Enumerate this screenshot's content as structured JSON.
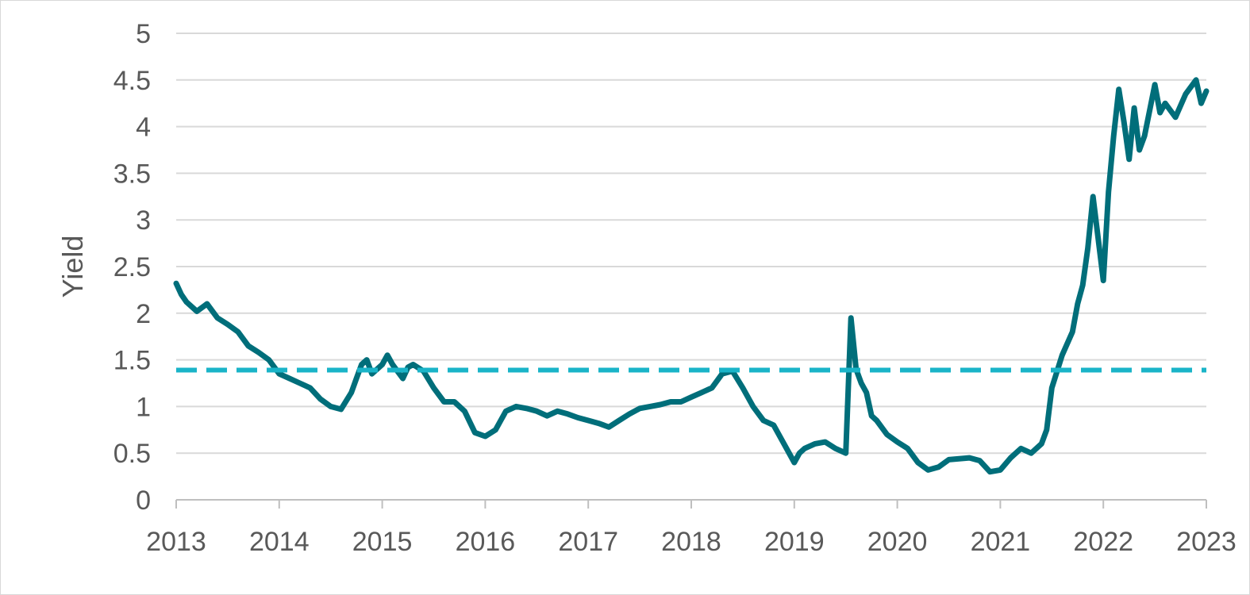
{
  "chart_data": {
    "type": "line",
    "title": "",
    "xlabel": "",
    "ylabel": "Yield",
    "xlim": [
      2013,
      2023
    ],
    "ylim": [
      0,
      5
    ],
    "x_ticks": [
      "2013",
      "2014",
      "2015",
      "2016",
      "2017",
      "2018",
      "2019",
      "2020",
      "2021",
      "2022",
      "2023"
    ],
    "y_ticks": [
      "0",
      "0.5",
      "1",
      "1.5",
      "2",
      "2.5",
      "3",
      "3.5",
      "4",
      "4.5",
      "5"
    ],
    "grid": "horizontal",
    "legend": "none",
    "series": [
      {
        "color": "#006E7A",
        "style": "solid",
        "x": [
          2013.0,
          2013.05,
          2013.1,
          2013.2,
          2013.3,
          2013.4,
          2013.5,
          2013.6,
          2013.7,
          2013.8,
          2013.9,
          2014.0,
          2014.1,
          2014.2,
          2014.3,
          2014.4,
          2014.5,
          2014.6,
          2014.7,
          2014.75,
          2014.8,
          2014.85,
          2014.9,
          2015.0,
          2015.05,
          2015.1,
          2015.2,
          2015.25,
          2015.3,
          2015.4,
          2015.5,
          2015.6,
          2015.7,
          2015.8,
          2015.9,
          2016.0,
          2016.1,
          2016.2,
          2016.3,
          2016.4,
          2016.5,
          2016.6,
          2016.7,
          2016.8,
          2016.9,
          2017.0,
          2017.1,
          2017.2,
          2017.3,
          2017.4,
          2017.5,
          2017.6,
          2017.7,
          2017.8,
          2017.9,
          2018.0,
          2018.1,
          2018.2,
          2018.3,
          2018.4,
          2018.5,
          2018.6,
          2018.7,
          2018.8,
          2018.9,
          2019.0,
          2019.05,
          2019.1,
          2019.2,
          2019.3,
          2019.4,
          2019.5,
          2019.55,
          2019.6,
          2019.65,
          2019.7,
          2019.75,
          2019.8,
          2019.9,
          2020.0,
          2020.1,
          2020.2,
          2020.3,
          2020.4,
          2020.5,
          2020.6,
          2020.7,
          2020.8,
          2020.9,
          2021.0,
          2021.1,
          2021.2,
          2021.3,
          2021.4,
          2021.45,
          2021.5,
          2021.6,
          2021.7,
          2021.75,
          2021.8,
          2021.85,
          2021.9,
          2021.95,
          2022.0,
          2022.05,
          2022.1,
          2022.15,
          2022.2,
          2022.25,
          2022.3,
          2022.35,
          2022.4,
          2022.5,
          2022.55,
          2022.6,
          2022.7,
          2022.8,
          2022.9,
          2022.95,
          2023.0
        ],
        "y": [
          2.32,
          2.2,
          2.12,
          2.02,
          2.1,
          1.95,
          1.88,
          1.8,
          1.65,
          1.58,
          1.5,
          1.35,
          1.3,
          1.25,
          1.2,
          1.08,
          1.0,
          0.97,
          1.15,
          1.3,
          1.45,
          1.5,
          1.35,
          1.45,
          1.55,
          1.45,
          1.3,
          1.42,
          1.45,
          1.38,
          1.2,
          1.05,
          1.05,
          0.95,
          0.72,
          0.68,
          0.75,
          0.95,
          1.0,
          0.98,
          0.95,
          0.9,
          0.95,
          0.92,
          0.88,
          0.85,
          0.82,
          0.78,
          0.85,
          0.92,
          0.98,
          1.0,
          1.02,
          1.05,
          1.05,
          1.1,
          1.15,
          1.2,
          1.35,
          1.38,
          1.2,
          1.0,
          0.85,
          0.8,
          0.6,
          0.4,
          0.5,
          0.55,
          0.6,
          0.62,
          0.55,
          0.5,
          1.95,
          1.4,
          1.25,
          1.15,
          0.9,
          0.85,
          0.7,
          0.62,
          0.55,
          0.4,
          0.32,
          0.35,
          0.43,
          0.44,
          0.45,
          0.42,
          0.3,
          0.32,
          0.45,
          0.55,
          0.5,
          0.6,
          0.75,
          1.2,
          1.55,
          1.8,
          2.1,
          2.3,
          2.7,
          3.25,
          2.8,
          2.35,
          3.3,
          3.9,
          4.4,
          4.05,
          3.65,
          4.2,
          3.75,
          3.9,
          4.45,
          4.15,
          4.25,
          4.1,
          4.35,
          4.5,
          4.25,
          4.38
        ]
      },
      {
        "color": "#1AB4C8",
        "style": "dashed",
        "x": [
          2013.0,
          2023.0
        ],
        "y": [
          1.39,
          1.39
        ]
      }
    ]
  }
}
